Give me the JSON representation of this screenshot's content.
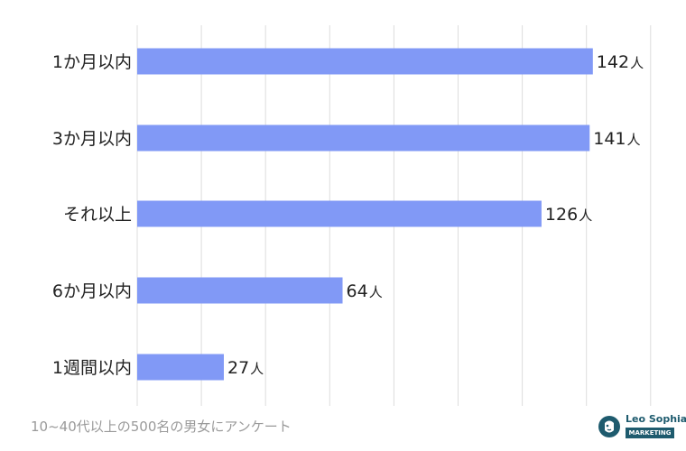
{
  "chart_data": {
    "type": "bar",
    "orientation": "horizontal",
    "categories": [
      "1か月以内",
      "3か月以内",
      "それ以上",
      "6か月以内",
      "1週間以内"
    ],
    "values": [
      142,
      141,
      126,
      64,
      27
    ],
    "value_unit": "人",
    "xlim": [
      0,
      160
    ],
    "grid": true,
    "colors": {
      "bar": "#8199f6",
      "grid": "#dddddd",
      "text": "#222222"
    }
  },
  "footnote": "10~40代以上の500名の男女にアンケート",
  "logo": {
    "name": "Leo Sophia",
    "tag": "MARKETING",
    "color": "#1e5b6e"
  }
}
